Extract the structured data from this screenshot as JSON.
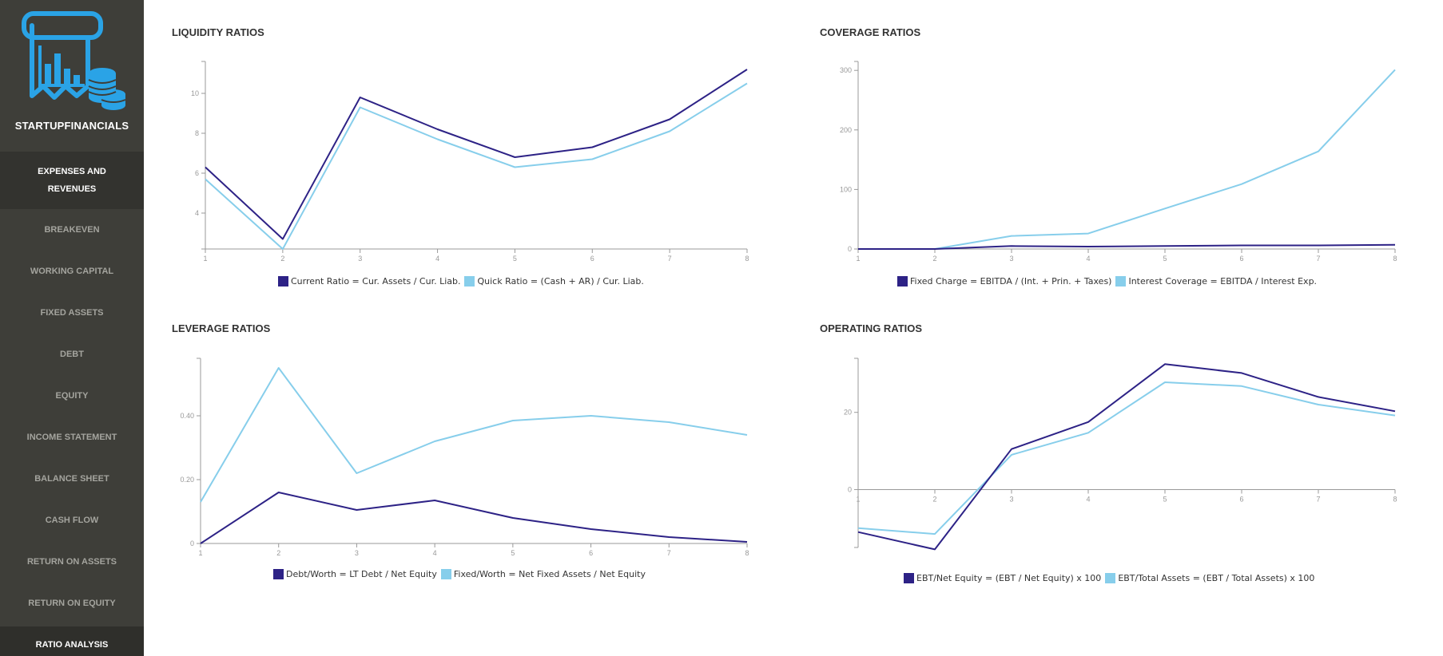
{
  "app": {
    "title": "STARTUPFINANCIALS"
  },
  "colors": {
    "series1": "#2d2286",
    "series2": "#87ceeb",
    "sidebar_bg": "#3e3e39",
    "logo": "#2aa3e6"
  },
  "sidebar": {
    "items": [
      {
        "label": "EXPENSES AND REVENUES",
        "highlight": true
      },
      {
        "label": "BREAKEVEN"
      },
      {
        "label": "WORKING CAPITAL"
      },
      {
        "label": "FIXED ASSETS"
      },
      {
        "label": "DEBT"
      },
      {
        "label": "EQUITY"
      },
      {
        "label": "INCOME STATEMENT"
      },
      {
        "label": "BALANCE SHEET"
      },
      {
        "label": "CASH FLOW"
      },
      {
        "label": "RETURN ON ASSETS"
      },
      {
        "label": "RETURN ON EQUITY"
      },
      {
        "label": "RATIO ANALYSIS",
        "highlight": true
      }
    ]
  },
  "chart_data": [
    {
      "type": "line",
      "title": "LIQUIDITY RATIOS",
      "x": [
        1,
        2,
        3,
        4,
        5,
        6,
        7,
        8
      ],
      "ylim": [
        2.2,
        11.6
      ],
      "yticks": [
        4,
        6,
        8,
        10
      ],
      "ytick_labels": [
        "4",
        "6",
        "8",
        "10"
      ],
      "series": [
        {
          "name": "Current Ratio = Cur. Assets / Cur. Liab.",
          "values": [
            6.3,
            2.7,
            9.8,
            8.2,
            6.8,
            7.3,
            8.7,
            11.2
          ]
        },
        {
          "name": "Quick Ratio = (Cash + AR) / Cur. Liab.",
          "values": [
            5.7,
            2.2,
            9.3,
            7.7,
            6.3,
            6.7,
            8.1,
            10.5
          ]
        }
      ]
    },
    {
      "type": "line",
      "title": "COVERAGE RATIOS",
      "x": [
        1,
        2,
        3,
        4,
        5,
        6,
        7,
        8
      ],
      "ylim": [
        0,
        315
      ],
      "yticks": [
        0,
        100,
        200,
        300
      ],
      "ytick_labels": [
        "0",
        "100",
        "200",
        "300"
      ],
      "series": [
        {
          "name": "Fixed Charge = EBITDA / (Int. + Prin. + Taxes)",
          "values": [
            0,
            0,
            5,
            4,
            5,
            6,
            6,
            7
          ]
        },
        {
          "name": "Interest Coverage = EBITDA / Interest Exp.",
          "values": [
            0,
            0,
            22,
            26,
            68,
            109,
            164,
            301
          ]
        }
      ]
    },
    {
      "type": "line",
      "title": "LEVERAGE RATIOS",
      "x": [
        1,
        2,
        3,
        4,
        5,
        6,
        7,
        8
      ],
      "ylim": [
        0,
        0.58
      ],
      "yticks": [
        0,
        0.2,
        0.4
      ],
      "ytick_labels": [
        "0",
        "0.20",
        "0.40"
      ],
      "series": [
        {
          "name": "Debt/Worth = LT Debt / Net Equity",
          "values": [
            0.0,
            0.16,
            0.105,
            0.135,
            0.08,
            0.045,
            0.02,
            0.005
          ]
        },
        {
          "name": "Fixed/Worth = Net Fixed Assets / Net Equity",
          "values": [
            0.13,
            0.55,
            0.22,
            0.32,
            0.385,
            0.4,
            0.38,
            0.34
          ]
        }
      ]
    },
    {
      "type": "line",
      "title": "OPERATING RATIOS",
      "x": [
        1,
        2,
        3,
        4,
        5,
        6,
        7,
        8
      ],
      "ylim": [
        -15,
        34
      ],
      "yticks": [
        0,
        20
      ],
      "ytick_labels": [
        "0",
        "20"
      ],
      "series": [
        {
          "name": "EBT/Net Equity = (EBT / Net Equity) x 100",
          "values": [
            -11,
            -15.5,
            10.5,
            17.5,
            32.5,
            30.2,
            24,
            20.3
          ]
        },
        {
          "name": "EBT/Total Assets = (EBT / Total Assets) x 100",
          "values": [
            -10,
            -11.5,
            9,
            14.7,
            27.8,
            26.8,
            22,
            19.2
          ]
        }
      ]
    }
  ]
}
